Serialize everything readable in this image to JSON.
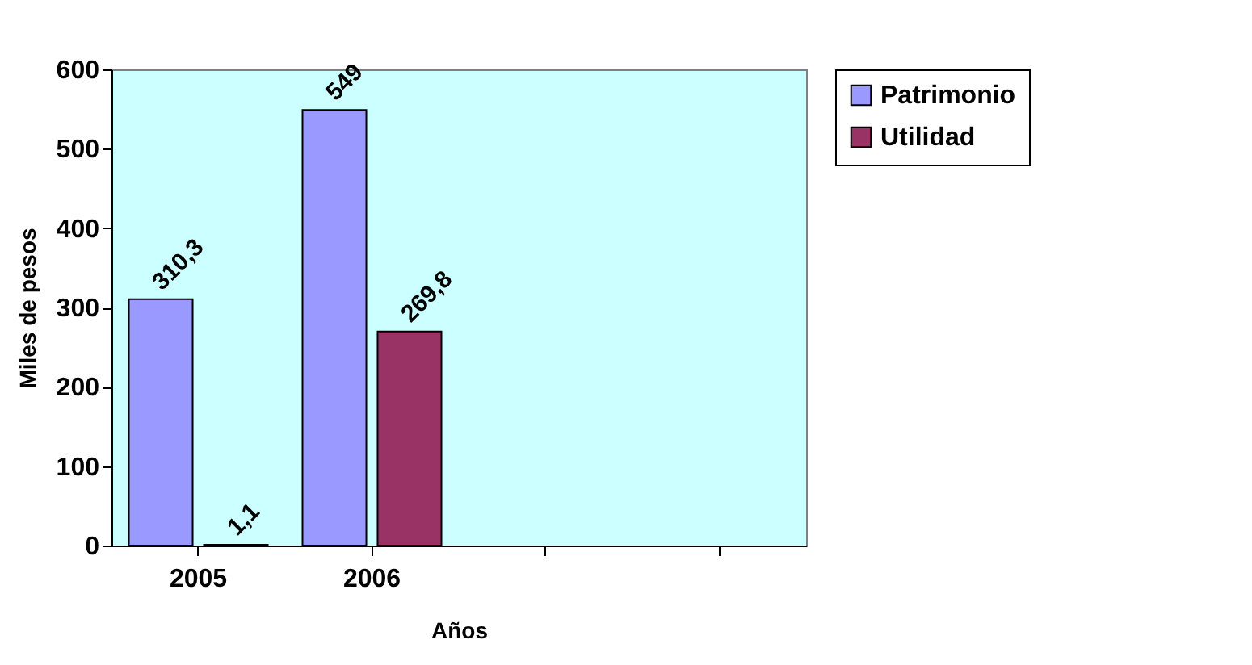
{
  "chart_data": {
    "type": "bar",
    "xlabel": "Años",
    "ylabel": "Miles de pesos",
    "categories": [
      "2005",
      "2006",
      null,
      null
    ],
    "series": [
      {
        "name": "Patrimonio",
        "color": "#9999ff",
        "values": [
          310.3,
          549,
          null,
          null
        ],
        "value_labels": [
          "310,3",
          "549",
          null,
          null
        ]
      },
      {
        "name": "Utilidad",
        "color": "#993366",
        "values": [
          1.1,
          269.8,
          null,
          null
        ],
        "value_labels": [
          "1,1",
          "269,8",
          null,
          null
        ]
      }
    ],
    "ylim": [
      0,
      600
    ],
    "yticks": [
      0,
      100,
      200,
      300,
      400,
      500,
      600
    ],
    "grid": false,
    "legend": "right"
  }
}
